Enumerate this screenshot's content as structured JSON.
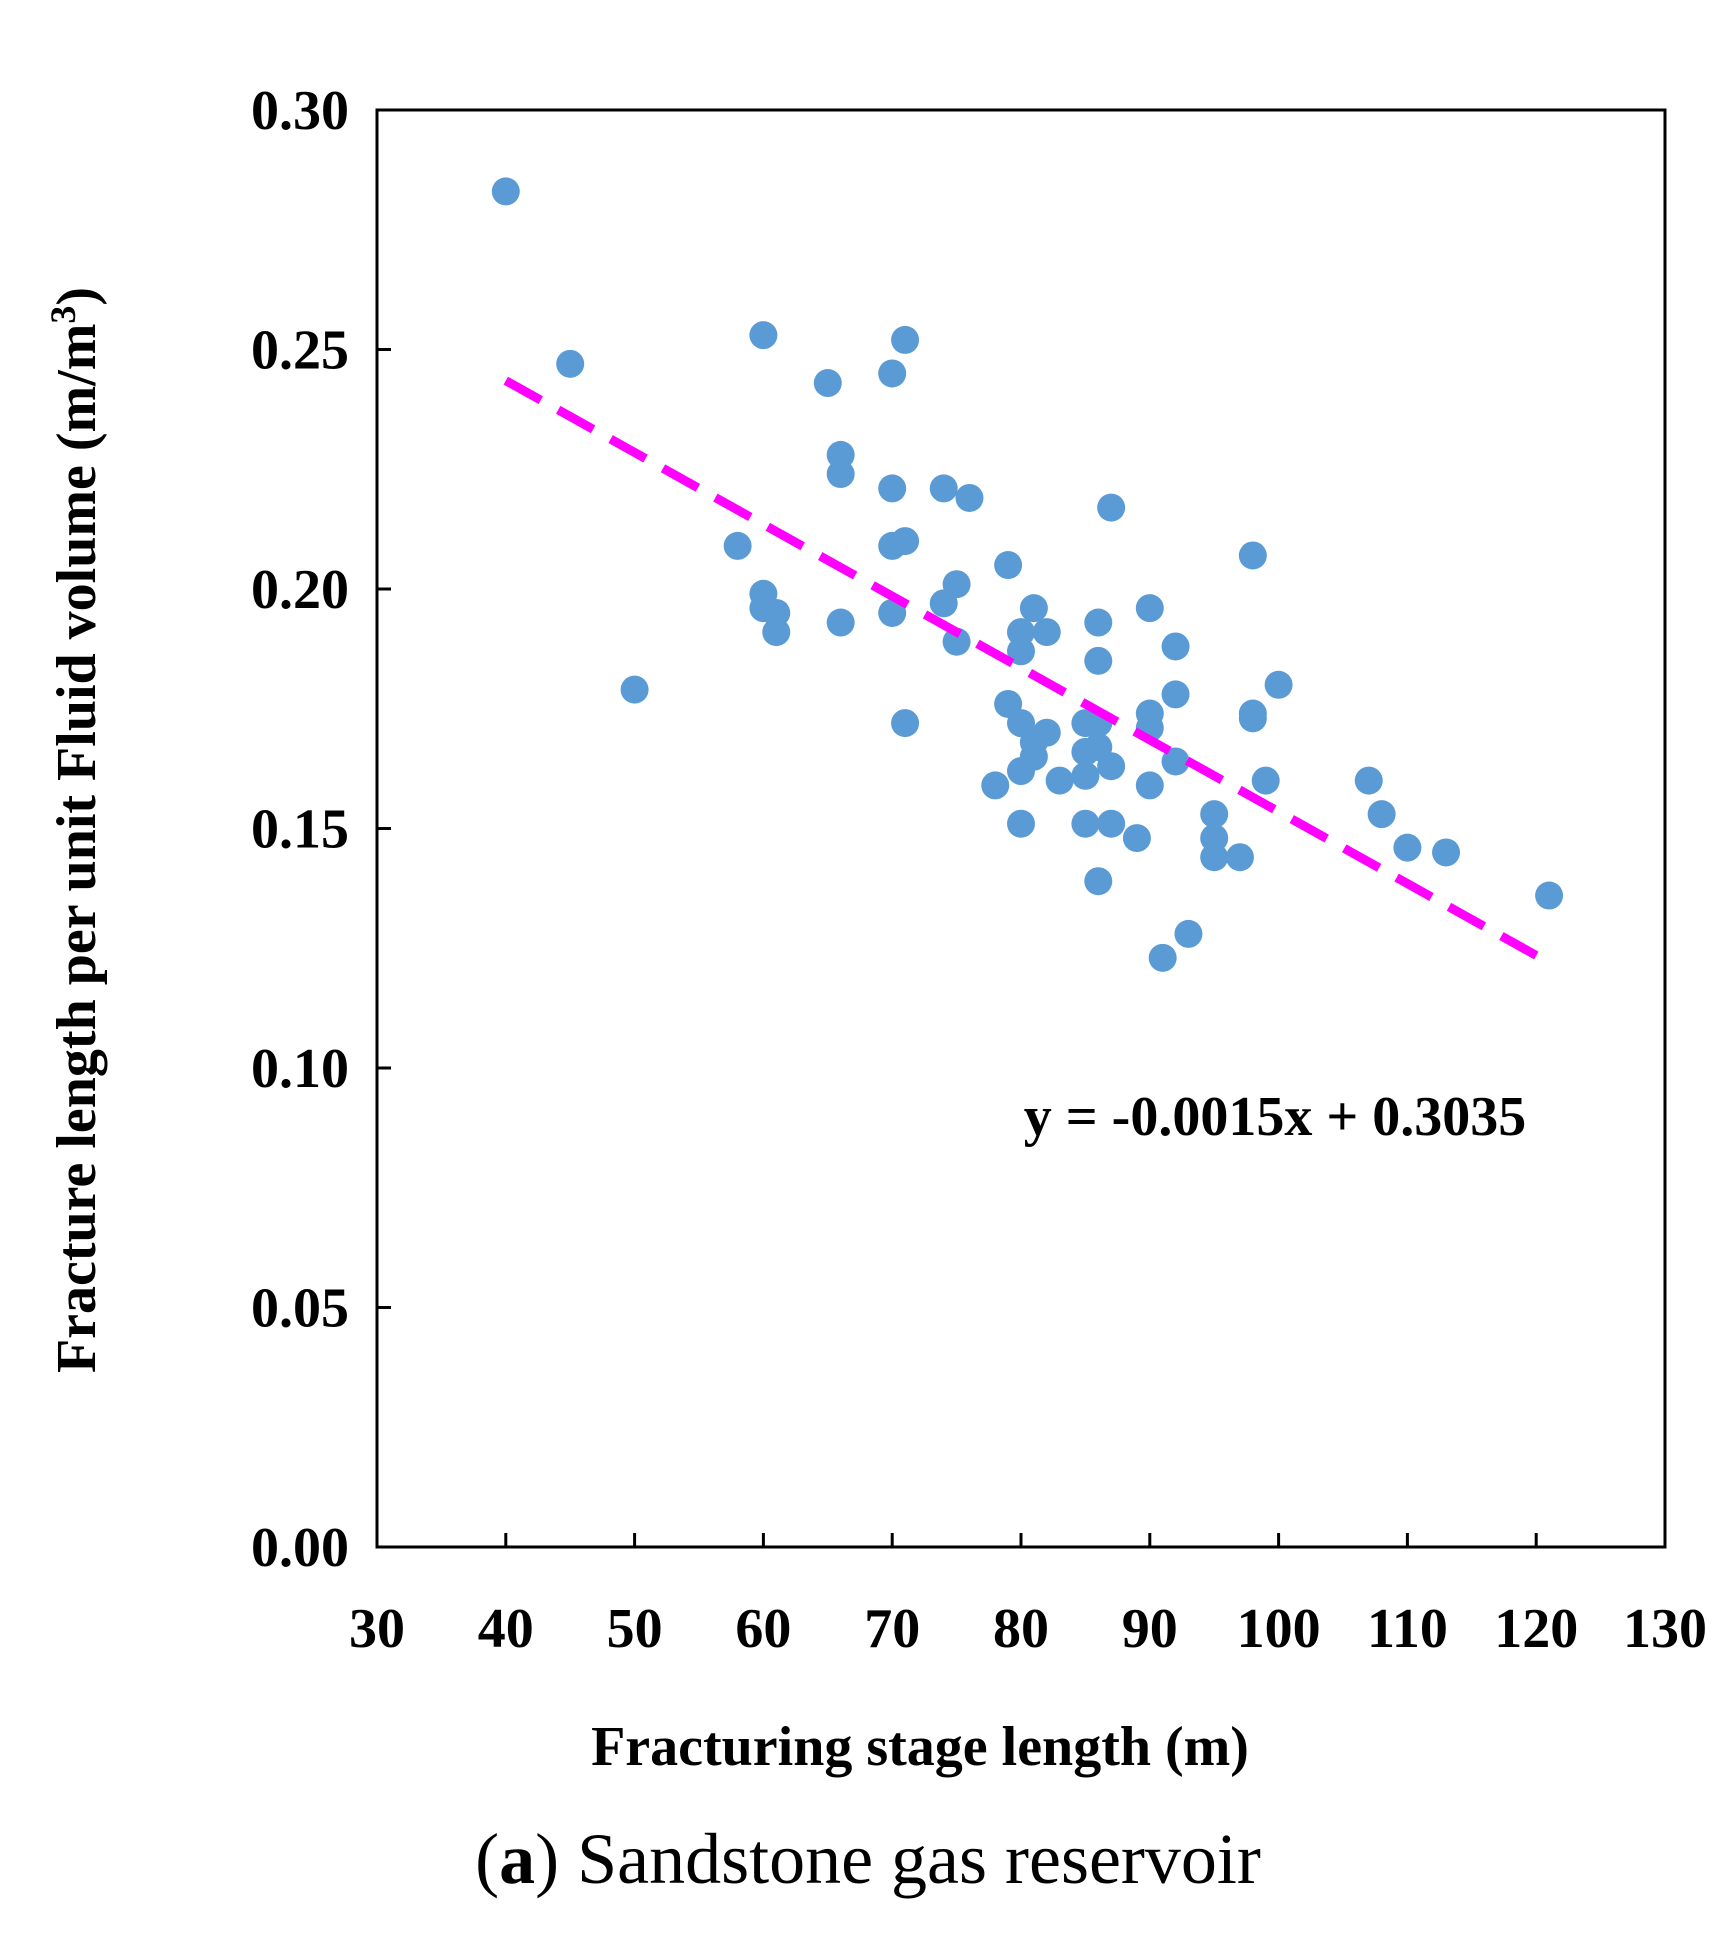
{
  "chart_data": {
    "type": "scatter",
    "xlabel": "Fracturing stage length (m)",
    "ylabel_main": "Fracture length per unit Fluid volume (m/m",
    "ylabel_sup": "3",
    "ylabel_close": ")",
    "xlim": [
      30,
      130
    ],
    "ylim": [
      0.0,
      0.3
    ],
    "xticks": [
      "30",
      "40",
      "50",
      "60",
      "70",
      "80",
      "90",
      "100",
      "110",
      "120",
      "130"
    ],
    "yticks": [
      "0.00",
      "0.05",
      "0.10",
      "0.15",
      "0.20",
      "0.25",
      "0.30"
    ],
    "marker_color": "#5b9bd5",
    "trendline": {
      "label": "y = -0.0015x + 0.3035",
      "slope": -0.0015,
      "intercept": 0.3035,
      "x_range": [
        40,
        121
      ],
      "color": "#ff00ff",
      "style": "dashed"
    },
    "caption_letter": "a",
    "caption_text": "Sandstone gas reservoir",
    "points": [
      [
        40,
        0.283
      ],
      [
        45,
        0.247
      ],
      [
        50,
        0.179
      ],
      [
        58,
        0.209
      ],
      [
        60,
        0.253
      ],
      [
        60,
        0.199
      ],
      [
        60,
        0.196
      ],
      [
        61,
        0.195
      ],
      [
        61,
        0.191
      ],
      [
        65,
        0.243
      ],
      [
        66,
        0.228
      ],
      [
        66,
        0.224
      ],
      [
        66,
        0.193
      ],
      [
        70,
        0.245
      ],
      [
        70,
        0.221
      ],
      [
        70,
        0.209
      ],
      [
        70,
        0.195
      ],
      [
        71,
        0.252
      ],
      [
        71,
        0.21
      ],
      [
        71,
        0.172
      ],
      [
        74,
        0.221
      ],
      [
        74,
        0.197
      ],
      [
        75,
        0.201
      ],
      [
        75,
        0.189
      ],
      [
        76,
        0.219
      ],
      [
        79,
        0.205
      ],
      [
        79,
        0.176
      ],
      [
        80,
        0.191
      ],
      [
        80,
        0.187
      ],
      [
        80,
        0.172
      ],
      [
        80,
        0.162
      ],
      [
        80,
        0.151
      ],
      [
        78,
        0.159
      ],
      [
        81,
        0.196
      ],
      [
        81,
        0.168
      ],
      [
        81,
        0.165
      ],
      [
        82,
        0.191
      ],
      [
        82,
        0.17
      ],
      [
        83,
        0.16
      ],
      [
        85,
        0.172
      ],
      [
        85,
        0.166
      ],
      [
        85,
        0.161
      ],
      [
        85,
        0.151
      ],
      [
        86,
        0.193
      ],
      [
        86,
        0.185
      ],
      [
        86,
        0.172
      ],
      [
        86,
        0.167
      ],
      [
        86,
        0.139
      ],
      [
        87,
        0.217
      ],
      [
        87,
        0.163
      ],
      [
        87,
        0.151
      ],
      [
        89,
        0.148
      ],
      [
        90,
        0.196
      ],
      [
        90,
        0.174
      ],
      [
        90,
        0.171
      ],
      [
        90,
        0.159
      ],
      [
        91,
        0.123
      ],
      [
        92,
        0.188
      ],
      [
        92,
        0.178
      ],
      [
        92,
        0.164
      ],
      [
        93,
        0.128
      ],
      [
        95,
        0.153
      ],
      [
        95,
        0.148
      ],
      [
        95,
        0.144
      ],
      [
        97,
        0.144
      ],
      [
        98,
        0.207
      ],
      [
        98,
        0.174
      ],
      [
        98,
        0.173
      ],
      [
        99,
        0.16
      ],
      [
        100,
        0.18
      ],
      [
        107,
        0.16
      ],
      [
        108,
        0.153
      ],
      [
        110,
        0.146
      ],
      [
        113,
        0.145
      ],
      [
        121,
        0.136
      ]
    ]
  }
}
